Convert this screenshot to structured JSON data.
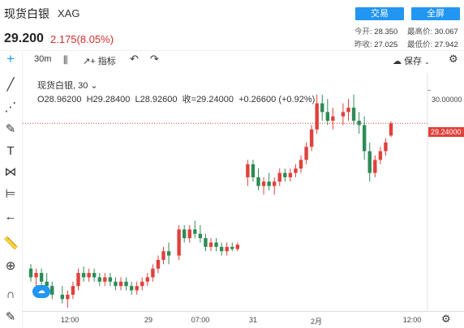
{
  "header": {
    "title": "现货白银",
    "code": "XAG",
    "price": "29.200",
    "change": "2.175(8.05%)",
    "buttons": {
      "trade": "交易",
      "fullscreen": "全屏"
    },
    "stats": {
      "today_open_label": "今开:",
      "today_open": "28.350",
      "high_label": "最高价:",
      "high": "30.067",
      "prev_close_label": "昨收:",
      "prev_close": "27.025",
      "low_label": "最低价:",
      "low": "27.942"
    }
  },
  "toolbar": {
    "interval": "30m",
    "indicators": "指标",
    "save": "保存"
  },
  "legend": {
    "symbol": "现货白银",
    "interval": "30",
    "open": "O28.96200",
    "high": "H29.28400",
    "low": "L28.92600",
    "close": "收=29.24000",
    "change": "+0.26600 (+0.92%)"
  },
  "axis": {
    "y_top_label": "30.00000",
    "last_price_label": "29.24000",
    "x_labels": [
      "12:00",
      "29",
      "07:00",
      "31",
      "2月",
      "12:00"
    ]
  },
  "chart_data": {
    "type": "candlestick",
    "last_price": 29.24,
    "colors": {
      "up": "#e0413b",
      "down": "#2e8b57"
    },
    "candles": [
      [
        25.9,
        26.0,
        25.6,
        25.7
      ],
      [
        25.7,
        25.9,
        25.5,
        25.8
      ],
      [
        25.8,
        25.9,
        25.5,
        25.6
      ],
      [
        25.6,
        25.8,
        25.4,
        25.5
      ],
      [
        25.5,
        25.6,
        25.2,
        25.3
      ],
      [
        25.3,
        25.5,
        25.1,
        25.2
      ],
      [
        25.2,
        25.4,
        25.0,
        25.3
      ],
      [
        25.3,
        25.6,
        25.2,
        25.5
      ],
      [
        25.5,
        25.9,
        25.4,
        25.8
      ],
      [
        25.8,
        25.95,
        25.6,
        25.7
      ],
      [
        25.7,
        25.9,
        25.6,
        25.8
      ],
      [
        25.8,
        25.9,
        25.6,
        25.7
      ],
      [
        25.7,
        25.8,
        25.5,
        25.6
      ],
      [
        25.6,
        25.8,
        25.5,
        25.7
      ],
      [
        25.7,
        25.8,
        25.5,
        25.6
      ],
      [
        25.6,
        25.7,
        25.4,
        25.5
      ],
      [
        25.5,
        25.7,
        25.4,
        25.6
      ],
      [
        25.6,
        25.7,
        25.4,
        25.5
      ],
      [
        25.5,
        25.6,
        25.3,
        25.4
      ],
      [
        25.4,
        25.6,
        25.3,
        25.5
      ],
      [
        25.5,
        25.7,
        25.4,
        25.6
      ],
      [
        25.6,
        25.8,
        25.5,
        25.7
      ],
      [
        25.7,
        26.0,
        25.6,
        25.9
      ],
      [
        25.9,
        26.2,
        25.8,
        26.1
      ],
      [
        26.1,
        26.4,
        26.0,
        26.3
      ],
      [
        26.3,
        26.5,
        26.0,
        26.2
      ],
      [
        26.2,
        26.9,
        26.1,
        26.8
      ],
      [
        26.8,
        26.9,
        26.5,
        26.6
      ],
      [
        26.6,
        26.9,
        26.5,
        26.8
      ],
      [
        26.8,
        27.0,
        26.6,
        26.7
      ],
      [
        26.7,
        26.9,
        26.5,
        26.6
      ],
      [
        26.6,
        26.7,
        26.3,
        26.4
      ],
      [
        26.4,
        26.6,
        26.3,
        26.5
      ],
      [
        26.5,
        26.6,
        26.3,
        26.4
      ],
      [
        26.4,
        26.5,
        26.2,
        26.3
      ],
      [
        26.3,
        26.5,
        26.2,
        26.4
      ],
      [
        26.4,
        26.5,
        26.3,
        26.35
      ],
      [
        26.35,
        26.5,
        26.3,
        26.45
      ],
      [
        28.0,
        28.4,
        27.8,
        28.3
      ],
      [
        28.3,
        28.4,
        27.9,
        28.0
      ],
      [
        28.0,
        28.2,
        27.7,
        27.8
      ],
      [
        27.8,
        28.0,
        27.6,
        27.9
      ],
      [
        27.9,
        28.1,
        27.7,
        27.8
      ],
      [
        27.8,
        28.0,
        27.6,
        27.9
      ],
      [
        27.9,
        28.2,
        27.8,
        28.1
      ],
      [
        28.1,
        28.2,
        27.9,
        28.0
      ],
      [
        28.0,
        28.2,
        27.9,
        28.1
      ],
      [
        28.1,
        28.3,
        28.0,
        28.2
      ],
      [
        28.2,
        28.5,
        28.1,
        28.4
      ],
      [
        28.4,
        28.8,
        28.3,
        28.7
      ],
      [
        28.7,
        29.2,
        28.6,
        29.1
      ],
      [
        29.1,
        29.9,
        29.0,
        29.7
      ],
      [
        29.7,
        29.9,
        29.3,
        29.5
      ],
      [
        29.5,
        29.8,
        29.2,
        29.3
      ],
      [
        29.3,
        29.6,
        29.1,
        29.4
      ],
      [
        29.4,
        29.7,
        29.2,
        29.5
      ],
      [
        29.5,
        29.8,
        29.3,
        29.6
      ],
      [
        29.6,
        29.9,
        29.2,
        29.3
      ],
      [
        29.3,
        29.5,
        29.0,
        29.2
      ],
      [
        29.2,
        29.4,
        28.4,
        28.6
      ],
      [
        28.6,
        28.8,
        27.9,
        28.1
      ],
      [
        28.1,
        28.5,
        28.0,
        28.4
      ],
      [
        28.4,
        28.7,
        28.3,
        28.6
      ],
      [
        28.6,
        28.9,
        28.5,
        28.8
      ],
      [
        28.96,
        29.284,
        28.926,
        29.24
      ]
    ],
    "gaps_before": [
      5,
      26,
      38,
      55
    ]
  }
}
